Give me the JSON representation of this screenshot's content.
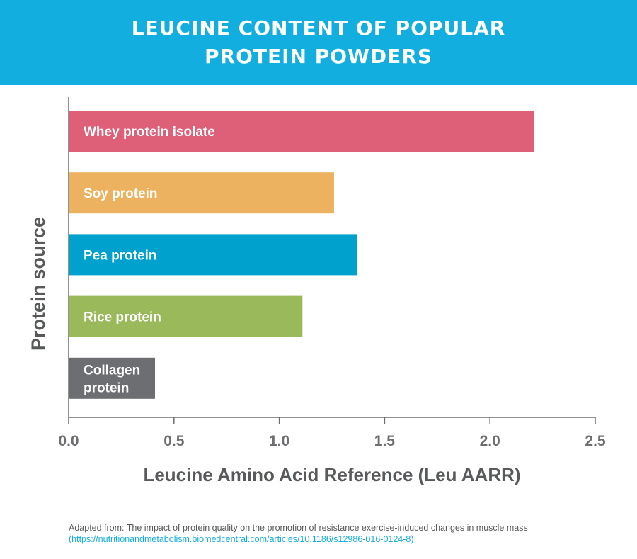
{
  "header": {
    "title": "LEUCINE CONTENT OF POPULAR PROTEIN POWDERS"
  },
  "chart_data": {
    "type": "bar",
    "orientation": "horizontal",
    "title": "LEUCINE CONTENT OF POPULAR PROTEIN POWDERS",
    "xlabel": "Leucine Amino Acid Reference (Leu AARR)",
    "ylabel": "Protein source",
    "xlim": [
      0,
      2.5
    ],
    "xticks": [
      "0.0",
      "0.5",
      "1.0",
      "1.5",
      "2.0",
      "2.5"
    ],
    "grid": false,
    "categories": [
      "Whey protein isolate",
      "Soy protein",
      "Pea protein",
      "Rice protein",
      "Collagen protein"
    ],
    "category_lines": [
      [
        "Whey protein isolate"
      ],
      [
        "Soy protein"
      ],
      [
        "Pea protein"
      ],
      [
        "Rice protein"
      ],
      [
        "Collagen",
        "protein"
      ]
    ],
    "values": [
      2.21,
      1.26,
      1.37,
      1.11,
      0.41
    ],
    "colors": [
      "#de5f78",
      "#edb25f",
      "#00a1cc",
      "#9ab95b",
      "#6d6e71"
    ]
  },
  "source": {
    "text": "Adapted from: The impact of protein quality on the promotion of resistance exercise-induced changes in muscle mass",
    "link": "(https://nutritionandmetabolism.biomedcentral.com/articles/10.1186/s12986-016-0124-8)"
  }
}
